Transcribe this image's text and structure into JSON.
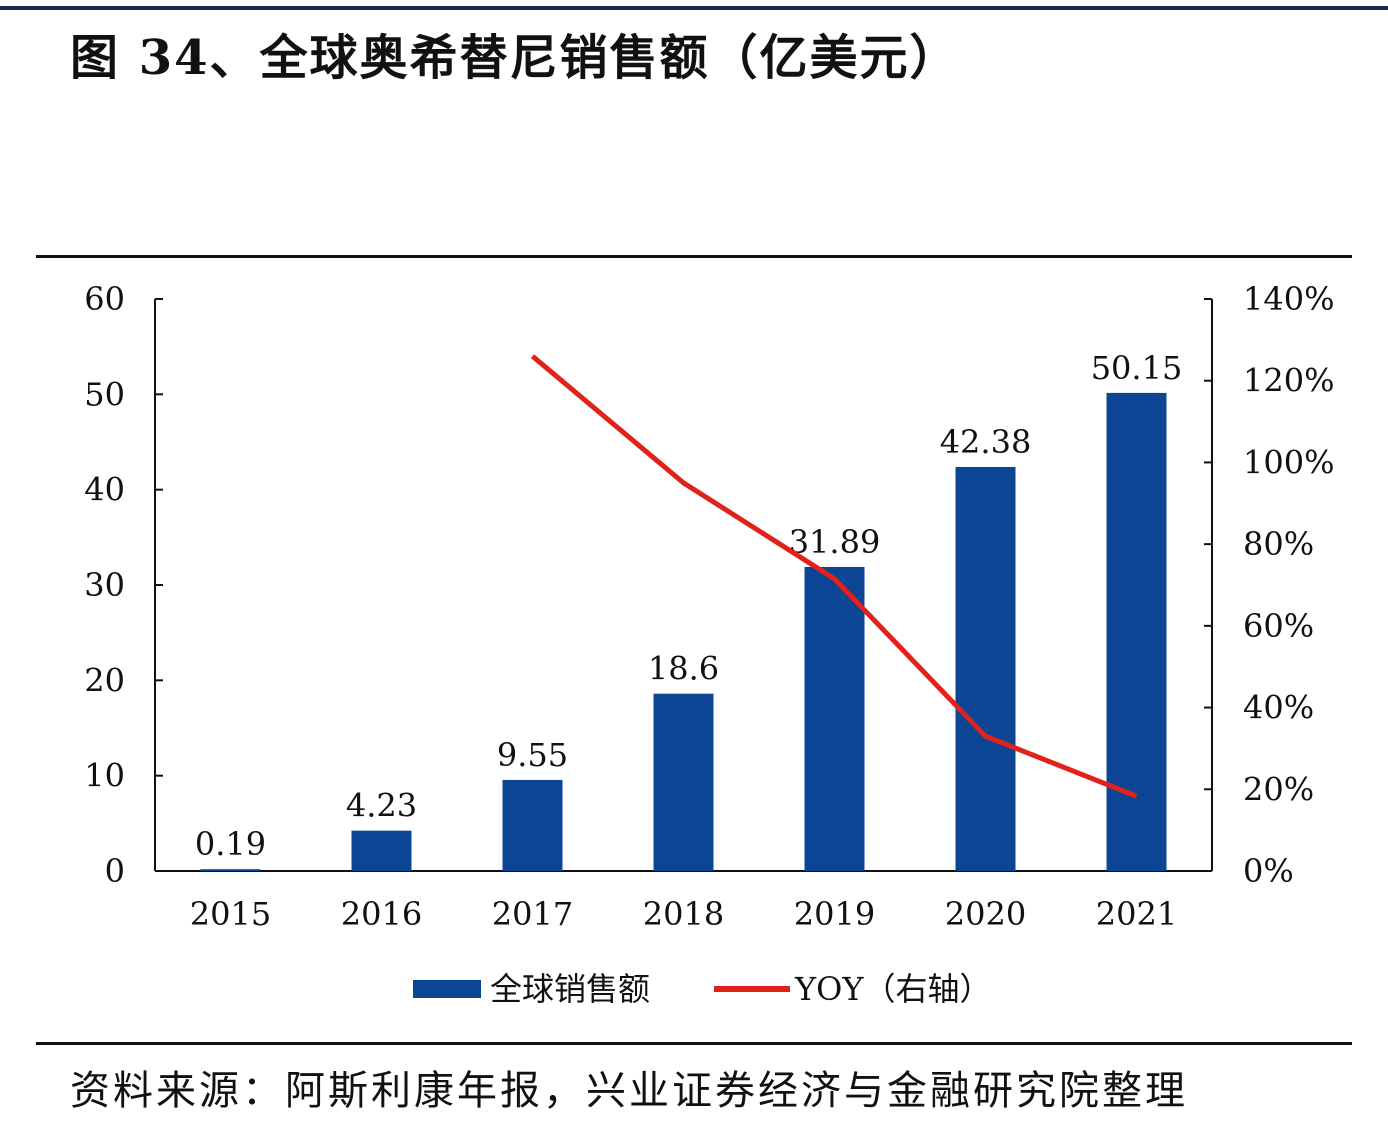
{
  "title": "图 34、全球奥希替尼销售额（亿美元）",
  "source": "资料来源：阿斯利康年报，兴业证券经济与金融研究院整理",
  "chart_data": {
    "type": "bar+line",
    "categories": [
      "2015",
      "2016",
      "2017",
      "2018",
      "2019",
      "2020",
      "2021"
    ],
    "series": [
      {
        "name": "全球销售额",
        "type": "bar",
        "axis": "left",
        "color": "#0b4594",
        "values": [
          0.19,
          4.23,
          9.55,
          18.6,
          31.89,
          42.38,
          50.15
        ],
        "labels": [
          "0.19",
          "4.23",
          "9.55",
          "18.6",
          "31.89",
          "42.38",
          "50.15"
        ]
      },
      {
        "name": "YOY（右轴）",
        "type": "line",
        "axis": "right",
        "color": "#e3211c",
        "values": [
          null,
          null,
          126,
          95,
          71.5,
          33,
          18.3
        ]
      }
    ],
    "y_left": {
      "range": [
        0,
        60
      ],
      "ticks": [
        "0",
        "10",
        "20",
        "30",
        "40",
        "50",
        "60"
      ]
    },
    "y_right": {
      "range": [
        0,
        140
      ],
      "ticks": [
        "0%",
        "20%",
        "40%",
        "60%",
        "80%",
        "100%",
        "120%",
        "140%"
      ]
    },
    "legend": {
      "position": "bottom",
      "items": [
        "全球销售额",
        "YOY（右轴）"
      ]
    },
    "grid": false
  }
}
